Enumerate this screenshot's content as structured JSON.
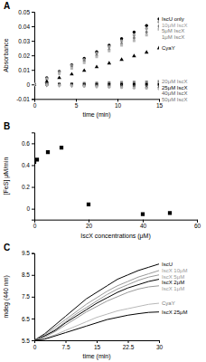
{
  "chart_data": [
    {
      "type": "scatter",
      "title": "A",
      "x_label": "time (min)",
      "y_label": "Absorbance",
      "x": [
        0,
        1.5,
        3,
        4.5,
        6,
        7.5,
        9,
        10.5,
        12,
        13.5,
        15
      ],
      "xlim": [
        0,
        15
      ],
      "xticks": [
        0,
        5,
        10,
        15
      ],
      "ylim": [
        -0.01,
        0.05
      ],
      "yticks": [
        -0.01,
        0,
        0.01,
        0.02,
        0.03,
        0.04,
        0.05
      ],
      "grid": false,
      "series": [
        {
          "name": "IscU only",
          "color": "#000000",
          "marker": "circle",
          "values": [
            0,
            0.0045,
            0.009,
            0.0135,
            0.018,
            0.0225,
            0.027,
            0.0315,
            0.036,
            0.0405,
            0.045
          ]
        },
        {
          "name": "10μM IscX",
          "color": "#9a9a9a",
          "marker": "circle",
          "values": [
            0,
            0.004,
            0.0085,
            0.013,
            0.017,
            0.0215,
            0.026,
            0.03,
            0.034,
            0.0385,
            0.043
          ]
        },
        {
          "name": "5μM IscX",
          "color": "#7a7a7a",
          "marker": "diamond",
          "values": [
            0,
            0.0038,
            0.008,
            0.012,
            0.016,
            0.02,
            0.024,
            0.028,
            0.032,
            0.036,
            0.04
          ]
        },
        {
          "name": "1μM IscX",
          "color": "#b5b5b5",
          "marker": "square",
          "values": [
            0,
            0.0035,
            0.0075,
            0.011,
            0.015,
            0.019,
            0.023,
            0.027,
            0.03,
            0.034,
            0.038
          ]
        },
        {
          "name": "CyaY",
          "color": "#000000",
          "marker": "triangle",
          "values": [
            0,
            0.002,
            0.0045,
            0.007,
            0.0095,
            0.012,
            0.0145,
            0.017,
            0.0195,
            0.022,
            0.025
          ]
        },
        {
          "name": "20μM IscX",
          "color": "#808080",
          "marker": "square",
          "values": [
            0,
            0,
            0.0003,
            0.0005,
            0.0008,
            0.001,
            0.0012,
            0.0014,
            0.0016,
            0.0018,
            0.002
          ]
        },
        {
          "name": "25μM IscX",
          "color": "#000000",
          "marker": "square",
          "values": [
            0,
            0,
            0,
            0,
            0,
            0,
            0,
            0,
            0,
            0,
            0
          ]
        },
        {
          "name": "40μM IscX",
          "color": "#555555",
          "marker": "diamond",
          "values": [
            0,
            -0.0002,
            -0.0004,
            -0.0006,
            -0.0008,
            -0.001,
            -0.0012,
            -0.0014,
            -0.0016,
            -0.0018,
            -0.002
          ]
        },
        {
          "name": "50μM IscX",
          "color": "#b0b0b0",
          "marker": "circle",
          "values": [
            0,
            -0.0003,
            -0.0006,
            -0.0009,
            -0.0012,
            -0.0015,
            -0.0018,
            -0.0021,
            -0.0024,
            -0.0027,
            -0.003
          ]
        }
      ]
    },
    {
      "type": "scatter",
      "title": "B",
      "x_label": "IscX concentrations (μM)",
      "y_label": "[FeS] μM/min",
      "x": [
        0,
        1,
        5,
        10,
        20,
        40,
        50
      ],
      "values": [
        0.43,
        0.45,
        0.52,
        0.56,
        0.04,
        -0.05,
        -0.04
      ],
      "color": "#000000",
      "marker": "square",
      "xlim": [
        0,
        60
      ],
      "xticks": [
        0,
        20,
        40,
        60
      ],
      "ylim": [
        -0.1,
        0.7
      ],
      "yticks": [
        0,
        0.2,
        0.4,
        0.6
      ],
      "grid": false
    },
    {
      "type": "line",
      "title": "C",
      "x_label": "time (min)",
      "y_label": "mdeg (440 nm)",
      "x": [
        0,
        2.5,
        5,
        7.5,
        10,
        12.5,
        15,
        17.5,
        20,
        22.5,
        25,
        27.5,
        30
      ],
      "xlim": [
        0,
        30
      ],
      "xticks": [
        0,
        7.5,
        15,
        22.5,
        30
      ],
      "ylim": [
        5.5,
        9.5
      ],
      "yticks": [
        5.5,
        6.5,
        7.5,
        8.5,
        9.5
      ],
      "grid": false,
      "series": [
        {
          "name": "IscU",
          "color": "#000000",
          "values": [
            5.5,
            5.8,
            6.2,
            6.6,
            7.0,
            7.4,
            7.7,
            8.0,
            8.3,
            8.5,
            8.7,
            8.85,
            9.0
          ]
        },
        {
          "name": "IscX 10μM",
          "color": "#999999",
          "values": [
            5.5,
            5.75,
            6.1,
            6.45,
            6.8,
            7.15,
            7.45,
            7.75,
            8.0,
            8.2,
            8.4,
            8.55,
            8.7
          ]
        },
        {
          "name": "IscX 5μM",
          "color": "#999999",
          "values": [
            5.5,
            5.7,
            6.0,
            6.35,
            6.7,
            7.0,
            7.3,
            7.6,
            7.85,
            8.05,
            8.25,
            8.4,
            8.5
          ]
        },
        {
          "name": "IscX 2μM",
          "color": "#000000",
          "values": [
            5.5,
            5.7,
            5.95,
            6.3,
            6.6,
            6.9,
            7.2,
            7.45,
            7.7,
            7.9,
            8.05,
            8.2,
            8.3
          ]
        },
        {
          "name": "IscX 1μM",
          "color": "#999999",
          "values": [
            5.5,
            5.65,
            5.9,
            6.2,
            6.5,
            6.8,
            7.05,
            7.3,
            7.5,
            7.7,
            7.85,
            7.95,
            8.0
          ]
        },
        {
          "name": "CyaY",
          "color": "#b8b8b8",
          "values": [
            5.5,
            5.6,
            5.75,
            5.95,
            6.15,
            6.35,
            6.55,
            6.7,
            6.85,
            6.95,
            7.05,
            7.15,
            7.2
          ]
        },
        {
          "name": "IscX 25μM",
          "color": "#000000",
          "values": [
            5.5,
            5.55,
            5.7,
            5.85,
            6.0,
            6.15,
            6.3,
            6.45,
            6.55,
            6.65,
            6.72,
            6.78,
            6.8
          ]
        }
      ]
    }
  ]
}
